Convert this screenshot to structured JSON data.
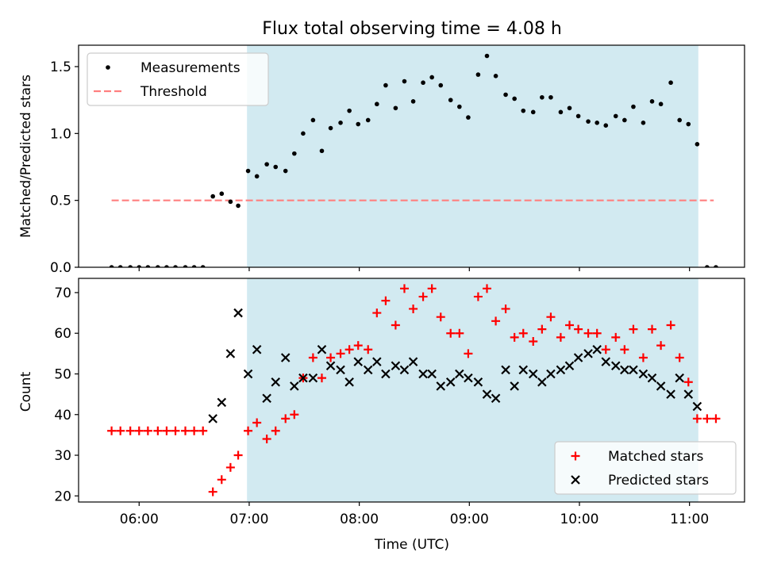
{
  "figure": {
    "title": "Flux total observing time = 4.08 h",
    "xlabel": "Time (UTC)",
    "x_ticks": [
      {
        "value": 6.0,
        "label": "06:00"
      },
      {
        "value": 7.0,
        "label": "07:00"
      },
      {
        "value": 8.0,
        "label": "08:00"
      },
      {
        "value": 9.0,
        "label": "09:00"
      },
      {
        "value": 10.0,
        "label": "10:00"
      },
      {
        "value": 11.0,
        "label": "11:00"
      }
    ],
    "xlim": [
      5.45,
      11.5
    ],
    "shaded_span": {
      "start": 6.98,
      "end": 11.08,
      "color": "#add8e6"
    }
  },
  "chart_data": [
    {
      "type": "scatter",
      "ylabel": "Matched/Predicted stars",
      "ylim": [
        0,
        1.66
      ],
      "y_ticks": [
        0.0,
        0.5,
        1.0,
        1.5
      ],
      "y_tick_labels": [
        "0.0",
        "0.5",
        "1.0",
        "1.5"
      ],
      "legend": {
        "placement": "upper-left",
        "entries": [
          "Measurements",
          "Threshold"
        ]
      },
      "threshold": {
        "name": "Threshold",
        "value": 0.5,
        "x_range": [
          5.75,
          11.22
        ],
        "color": "#ff7f7f"
      },
      "series": [
        {
          "name": "Measurements",
          "color": "#000000",
          "x": [
            5.75,
            5.83,
            5.92,
            6.0,
            6.08,
            6.17,
            6.25,
            6.33,
            6.42,
            6.5,
            6.58,
            6.67,
            6.75,
            6.83,
            6.9,
            6.99,
            7.07,
            7.16,
            7.24,
            7.33,
            7.41,
            7.49,
            7.58,
            7.66,
            7.74,
            7.83,
            7.91,
            7.99,
            8.08,
            8.16,
            8.24,
            8.33,
            8.41,
            8.49,
            8.58,
            8.66,
            8.74,
            8.83,
            8.91,
            8.99,
            9.08,
            9.16,
            9.24,
            9.33,
            9.41,
            9.49,
            9.58,
            9.66,
            9.74,
            9.83,
            9.91,
            9.99,
            10.08,
            10.16,
            10.24,
            10.33,
            10.41,
            10.49,
            10.58,
            10.66,
            10.74,
            10.83,
            10.91,
            10.99,
            11.07,
            11.16,
            11.24
          ],
          "y": [
            0,
            0,
            0,
            0,
            0,
            0,
            0,
            0,
            0,
            0,
            0,
            0.53,
            0.55,
            0.49,
            0.46,
            0.72,
            0.68,
            0.77,
            0.75,
            0.72,
            0.85,
            1.0,
            1.1,
            0.87,
            1.04,
            1.08,
            1.17,
            1.07,
            1.1,
            1.22,
            1.36,
            1.19,
            1.39,
            1.24,
            1.38,
            1.42,
            1.36,
            1.25,
            1.2,
            1.12,
            1.44,
            1.58,
            1.43,
            1.29,
            1.26,
            1.17,
            1.16,
            1.27,
            1.27,
            1.16,
            1.19,
            1.13,
            1.09,
            1.08,
            1.06,
            1.13,
            1.1,
            1.2,
            1.08,
            1.24,
            1.22,
            1.38,
            1.1,
            1.07,
            0.92,
            0,
            0
          ]
        }
      ]
    },
    {
      "type": "scatter",
      "ylabel": "Count",
      "ylim": [
        18.5,
        73.5
      ],
      "y_ticks": [
        20,
        30,
        40,
        50,
        60,
        70
      ],
      "y_tick_labels": [
        "20",
        "30",
        "40",
        "50",
        "60",
        "70"
      ],
      "legend": {
        "placement": "lower-right",
        "entries": [
          "Matched stars",
          "Predicted stars"
        ]
      },
      "series": [
        {
          "name": "Matched stars",
          "marker": "plus",
          "color": "#ff0000",
          "x": [
            5.75,
            5.83,
            5.92,
            6.0,
            6.08,
            6.17,
            6.25,
            6.33,
            6.42,
            6.5,
            6.58,
            6.67,
            6.75,
            6.83,
            6.9,
            6.99,
            7.07,
            7.16,
            7.24,
            7.33,
            7.41,
            7.49,
            7.58,
            7.66,
            7.74,
            7.83,
            7.91,
            7.99,
            8.08,
            8.16,
            8.24,
            8.33,
            8.41,
            8.49,
            8.58,
            8.66,
            8.74,
            8.83,
            8.91,
            8.99,
            9.08,
            9.16,
            9.24,
            9.33,
            9.41,
            9.49,
            9.58,
            9.66,
            9.74,
            9.83,
            9.91,
            9.99,
            10.08,
            10.16,
            10.24,
            10.33,
            10.41,
            10.49,
            10.58,
            10.66,
            10.74,
            10.83,
            10.91,
            10.99,
            11.07,
            11.16,
            11.24
          ],
          "y": [
            36,
            36,
            36,
            36,
            36,
            36,
            36,
            36,
            36,
            36,
            36,
            21,
            24,
            27,
            30,
            36,
            38,
            34,
            36,
            39,
            40,
            49,
            54,
            49,
            54,
            55,
            56,
            57,
            56,
            65,
            68,
            62,
            71,
            66,
            69,
            71,
            64,
            60,
            60,
            55,
            69,
            71,
            63,
            66,
            59,
            60,
            58,
            61,
            64,
            59,
            62,
            61,
            60,
            60,
            56,
            59,
            56,
            61,
            54,
            61,
            57,
            62,
            54,
            48,
            39,
            39,
            39
          ]
        },
        {
          "name": "Predicted stars",
          "marker": "x",
          "color": "#000000",
          "x": [
            6.67,
            6.75,
            6.83,
            6.9,
            6.99,
            7.07,
            7.16,
            7.24,
            7.33,
            7.41,
            7.49,
            7.58,
            7.66,
            7.74,
            7.83,
            7.91,
            7.99,
            8.08,
            8.16,
            8.24,
            8.33,
            8.41,
            8.49,
            8.58,
            8.66,
            8.74,
            8.83,
            8.91,
            8.99,
            9.08,
            9.16,
            9.24,
            9.33,
            9.41,
            9.49,
            9.58,
            9.66,
            9.74,
            9.83,
            9.91,
            9.99,
            10.08,
            10.16,
            10.24,
            10.33,
            10.41,
            10.49,
            10.58,
            10.66,
            10.74,
            10.83,
            10.91,
            10.99,
            11.07
          ],
          "y": [
            39,
            43,
            55,
            65,
            50,
            56,
            44,
            48,
            54,
            47,
            49,
            49,
            56,
            52,
            51,
            48,
            53,
            51,
            53,
            50,
            52,
            51,
            53,
            50,
            50,
            47,
            48,
            50,
            49,
            48,
            45,
            44,
            51,
            47,
            51,
            50,
            48,
            50,
            51,
            52,
            54,
            55,
            56,
            53,
            52,
            51,
            51,
            50,
            49,
            47,
            45,
            49,
            45,
            42
          ]
        }
      ]
    }
  ]
}
